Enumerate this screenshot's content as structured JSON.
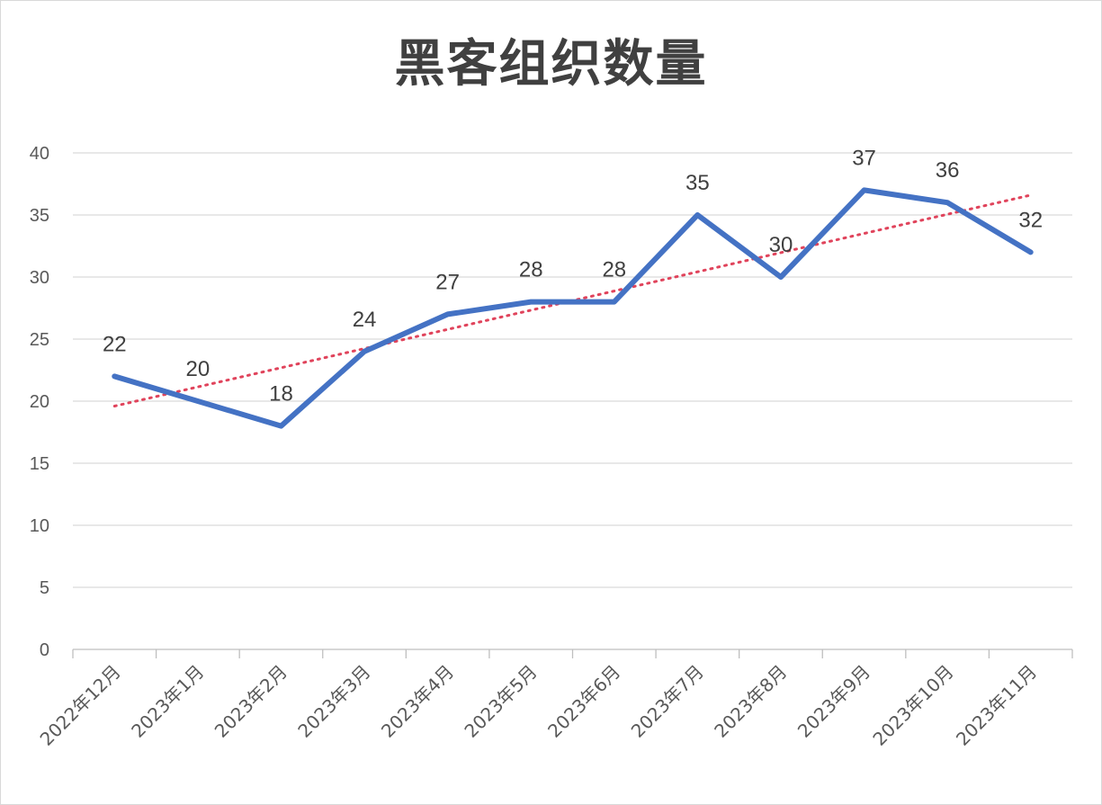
{
  "chart_data": {
    "type": "line",
    "title": "黑客组织数量",
    "categories": [
      "2022年12月",
      "2023年1月",
      "2023年2月",
      "2023年3月",
      "2023年4月",
      "2023年5月",
      "2023年6月",
      "2023年7月",
      "2023年8月",
      "2023年9月",
      "2023年10月",
      "2023年11月"
    ],
    "series": [
      {
        "values": [
          22,
          20,
          18,
          24,
          27,
          28,
          28,
          35,
          30,
          37,
          36,
          32
        ],
        "color": "#4472c4",
        "data_labels": true
      }
    ],
    "trendline": {
      "kind": "linear",
      "start": 19.6,
      "end": 36.6,
      "color": "#e0435b",
      "style": "dotted"
    },
    "ylim": [
      0,
      40
    ],
    "yticks": [
      0,
      5,
      10,
      15,
      20,
      25,
      30,
      35,
      40
    ],
    "grid": true,
    "legend": "none",
    "xlabel": "",
    "ylabel": ""
  }
}
